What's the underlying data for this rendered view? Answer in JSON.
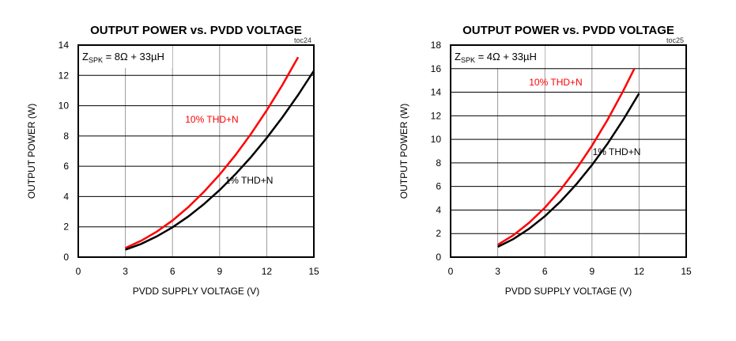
{
  "chart_data": [
    {
      "type": "line",
      "title": "OUTPUT POWER vs. PVDD VOLTAGE",
      "tag": "toc24",
      "annotation": {
        "main": "Z",
        "sub": "SPK",
        "rest": " = 8Ω + 33µH"
      },
      "xlabel": "PVDD SUPPLY VOLTAGE (V)",
      "ylabel": "OUTPUT POWER (W)",
      "xlim": [
        0,
        15
      ],
      "ylim": [
        0,
        14
      ],
      "xticks": [
        0,
        3,
        6,
        9,
        12,
        15
      ],
      "yticks": [
        0,
        2,
        4,
        6,
        8,
        10,
        12,
        14
      ],
      "grid": true,
      "series": [
        {
          "name": "10% THD+N",
          "color": "#ff0000",
          "x": [
            3,
            4,
            5,
            6,
            7,
            8,
            9,
            10,
            11,
            12,
            13,
            14
          ],
          "y": [
            0.6,
            1.08,
            1.68,
            2.42,
            3.3,
            4.31,
            5.45,
            6.73,
            8.14,
            9.69,
            11.37,
            13.2
          ]
        },
        {
          "name": "1% THD+N",
          "color": "#000000",
          "x": [
            3,
            4,
            5,
            6,
            7,
            8,
            9,
            10,
            11,
            12,
            13,
            14,
            15
          ],
          "y": [
            0.49,
            0.87,
            1.37,
            1.97,
            2.68,
            3.5,
            4.43,
            5.47,
            6.61,
            7.87,
            9.24,
            10.71,
            12.3
          ]
        }
      ]
    },
    {
      "type": "line",
      "title": "OUTPUT POWER vs. PVDD VOLTAGE",
      "tag": "toc25",
      "annotation": {
        "main": "Z",
        "sub": "SPK",
        "rest": " = 4Ω + 33µH"
      },
      "xlabel": "PVDD SUPPLY VOLTAGE (V)",
      "ylabel": "OUTPUT POWER (W)",
      "xlim": [
        0,
        15
      ],
      "ylim": [
        0,
        18
      ],
      "xticks": [
        0,
        3,
        6,
        9,
        12,
        15
      ],
      "yticks": [
        0,
        2,
        4,
        6,
        8,
        10,
        12,
        14,
        16,
        18
      ],
      "grid": true,
      "series": [
        {
          "name": "10% THD+N",
          "color": "#ff0000",
          "x": [
            3,
            4,
            5,
            6,
            7,
            8,
            9,
            10,
            11,
            11.7
          ],
          "y": [
            1.05,
            1.87,
            2.92,
            4.2,
            5.72,
            7.47,
            9.46,
            11.68,
            14.13,
            16.0
          ]
        },
        {
          "name": "1% THD+N",
          "color": "#000000",
          "x": [
            3,
            4,
            5,
            6,
            7,
            8,
            9,
            10,
            11,
            12
          ],
          "y": [
            0.87,
            1.54,
            2.41,
            3.47,
            4.73,
            6.18,
            7.82,
            9.65,
            11.68,
            13.9
          ]
        }
      ]
    }
  ]
}
